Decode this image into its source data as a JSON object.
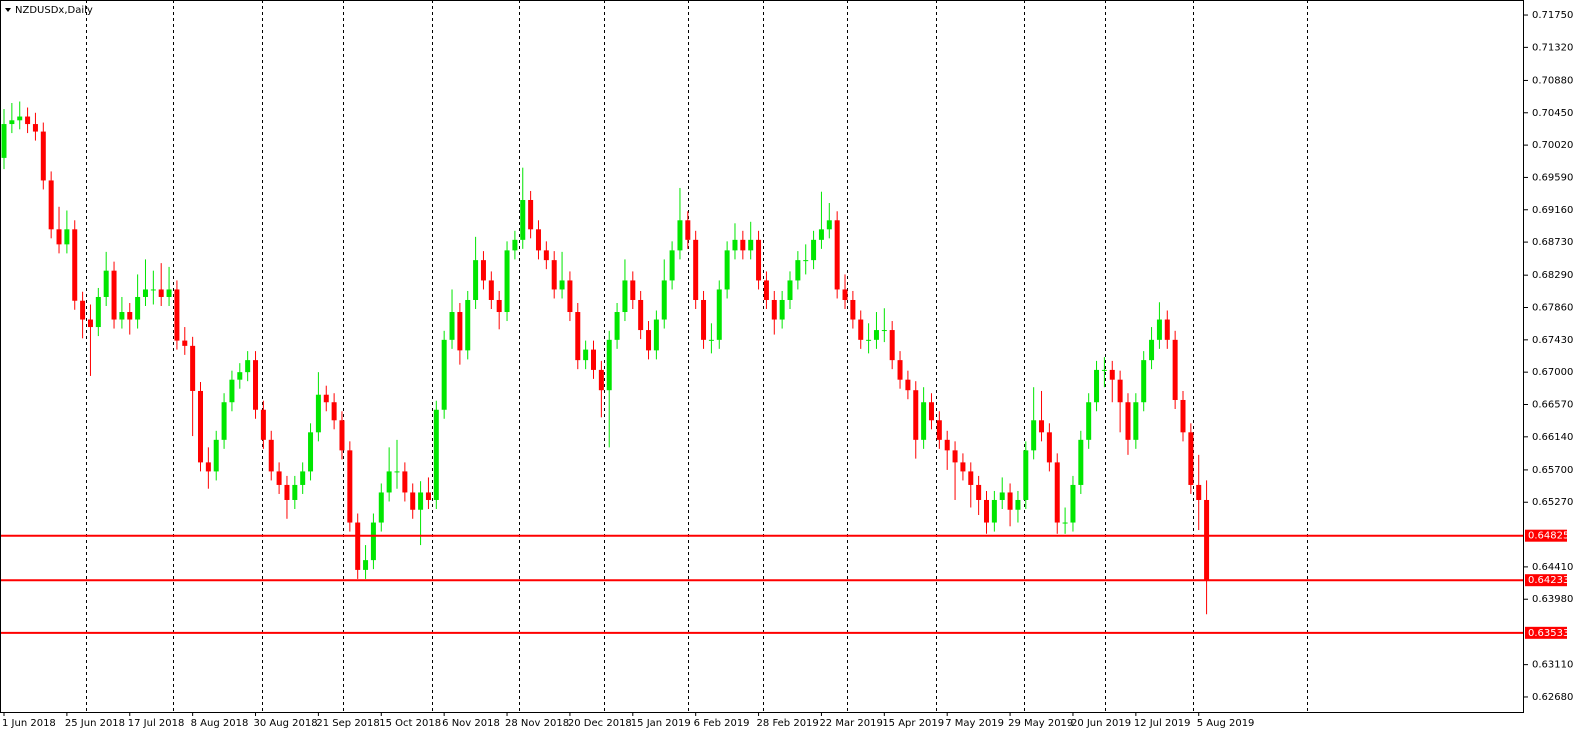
{
  "chart_data": {
    "type": "candlestick",
    "title": "NZDUSDx,Daily",
    "up_color": "#00e600",
    "down_color": "#ff0000",
    "level_color": "#ff0000",
    "ylim": [
      0.6248,
      0.7195
    ],
    "yticks": [
      {
        "value": 0.7175,
        "label": "0.71750"
      },
      {
        "value": 0.7132,
        "label": "0.71320"
      },
      {
        "value": 0.7088,
        "label": "0.70880"
      },
      {
        "value": 0.7045,
        "label": "0.70450"
      },
      {
        "value": 0.7002,
        "label": "0.70020"
      },
      {
        "value": 0.6959,
        "label": "0.69590"
      },
      {
        "value": 0.6916,
        "label": "0.69160"
      },
      {
        "value": 0.6873,
        "label": "0.68730"
      },
      {
        "value": 0.6829,
        "label": "0.68290"
      },
      {
        "value": 0.6786,
        "label": "0.67860"
      },
      {
        "value": 0.6743,
        "label": "0.67430"
      },
      {
        "value": 0.67,
        "label": "0.67000"
      },
      {
        "value": 0.6657,
        "label": "0.66570"
      },
      {
        "value": 0.6614,
        "label": "0.66140"
      },
      {
        "value": 0.657,
        "label": "0.65700"
      },
      {
        "value": 0.6527,
        "label": "0.65270"
      },
      {
        "value": 0.6441,
        "label": "0.64410"
      },
      {
        "value": 0.6398,
        "label": "0.63980"
      },
      {
        "value": 0.6311,
        "label": "0.63110"
      },
      {
        "value": 0.6268,
        "label": "0.62680"
      }
    ],
    "levels": [
      0.64825,
      0.64233,
      0.63533
    ],
    "x_labels": [
      "1 Jun 2018",
      "25 Jun 2018",
      "17 Jul 2018",
      "8 Aug 2018",
      "30 Aug 2018",
      "21 Sep 2018",
      "15 Oct 2018",
      "6 Nov 2018",
      "28 Nov 2018",
      "20 Dec 2018",
      "15 Jan 2019",
      "6 Feb 2019",
      "28 Feb 2019",
      "22 Mar 2019",
      "15 Apr 2019",
      "7 May 2019",
      "29 May 2019",
      "20 Jun 2019",
      "12 Jul 2019",
      "5 Aug 2019"
    ],
    "ohlc": [
      [
        0.6985,
        0.705,
        0.697,
        0.703
      ],
      [
        0.703,
        0.7058,
        0.7018,
        0.7035
      ],
      [
        0.7035,
        0.706,
        0.7023,
        0.704
      ],
      [
        0.704,
        0.7052,
        0.7018,
        0.703
      ],
      [
        0.703,
        0.7045,
        0.7008,
        0.702
      ],
      [
        0.702,
        0.7032,
        0.6943,
        0.6955
      ],
      [
        0.6955,
        0.6967,
        0.6878,
        0.689
      ],
      [
        0.689,
        0.692,
        0.6858,
        0.687
      ],
      [
        0.687,
        0.6915,
        0.6858,
        0.689
      ],
      [
        0.689,
        0.6902,
        0.6783,
        0.6795
      ],
      [
        0.6795,
        0.6807,
        0.6745,
        0.677
      ],
      [
        0.677,
        0.679,
        0.6695,
        0.676
      ],
      [
        0.676,
        0.6812,
        0.6748,
        0.68
      ],
      [
        0.68,
        0.686,
        0.6788,
        0.6835
      ],
      [
        0.6835,
        0.6847,
        0.6758,
        0.677
      ],
      [
        0.677,
        0.68,
        0.6758,
        0.678
      ],
      [
        0.678,
        0.6792,
        0.675,
        0.677
      ],
      [
        0.677,
        0.683,
        0.6758,
        0.68
      ],
      [
        0.68,
        0.685,
        0.6788,
        0.681
      ],
      [
        0.681,
        0.6835,
        0.679,
        0.681
      ],
      [
        0.681,
        0.6845,
        0.6788,
        0.68
      ],
      [
        0.68,
        0.684,
        0.6788,
        0.681
      ],
      [
        0.681,
        0.6822,
        0.673,
        0.6742
      ],
      [
        0.6742,
        0.676,
        0.6723,
        0.6735
      ],
      [
        0.6735,
        0.6747,
        0.6615,
        0.6675
      ],
      [
        0.6675,
        0.6687,
        0.6568,
        0.658
      ],
      [
        0.658,
        0.66,
        0.6545,
        0.6568
      ],
      [
        0.6568,
        0.6622,
        0.6556,
        0.661
      ],
      [
        0.661,
        0.6672,
        0.6598,
        0.666
      ],
      [
        0.666,
        0.6702,
        0.6648,
        0.669
      ],
      [
        0.669,
        0.6712,
        0.6678,
        0.67
      ],
      [
        0.67,
        0.6728,
        0.6688,
        0.6716
      ],
      [
        0.6716,
        0.6728,
        0.6638,
        0.665
      ],
      [
        0.665,
        0.6662,
        0.6598,
        0.661
      ],
      [
        0.661,
        0.6622,
        0.6556,
        0.6568
      ],
      [
        0.6568,
        0.658,
        0.6538,
        0.655
      ],
      [
        0.655,
        0.6562,
        0.6505,
        0.653
      ],
      [
        0.653,
        0.6562,
        0.6518,
        0.655
      ],
      [
        0.655,
        0.658,
        0.6538,
        0.6568
      ],
      [
        0.6568,
        0.6632,
        0.6556,
        0.662
      ],
      [
        0.662,
        0.67,
        0.6608,
        0.667
      ],
      [
        0.667,
        0.6682,
        0.6648,
        0.666
      ],
      [
        0.666,
        0.6672,
        0.6624,
        0.6636
      ],
      [
        0.6636,
        0.6648,
        0.6584,
        0.6596
      ],
      [
        0.6596,
        0.6608,
        0.6488,
        0.65
      ],
      [
        0.65,
        0.6512,
        0.6425,
        0.6437
      ],
      [
        0.6437,
        0.647,
        0.6425,
        0.645
      ],
      [
        0.645,
        0.6512,
        0.6438,
        0.65
      ],
      [
        0.65,
        0.6552,
        0.6488,
        0.654
      ],
      [
        0.654,
        0.66,
        0.6528,
        0.6568
      ],
      [
        0.6568,
        0.661,
        0.6545,
        0.6568
      ],
      [
        0.6568,
        0.658,
        0.6528,
        0.654
      ],
      [
        0.654,
        0.6552,
        0.6505,
        0.6517
      ],
      [
        0.6517,
        0.6555,
        0.647,
        0.654
      ],
      [
        0.654,
        0.656,
        0.6518,
        0.653
      ],
      [
        0.653,
        0.6662,
        0.6518,
        0.665
      ],
      [
        0.665,
        0.6755,
        0.6638,
        0.6743
      ],
      [
        0.6743,
        0.681,
        0.6731,
        0.678
      ],
      [
        0.678,
        0.6792,
        0.671,
        0.6729
      ],
      [
        0.6729,
        0.6808,
        0.6717,
        0.6796
      ],
      [
        0.6796,
        0.688,
        0.6784,
        0.6849
      ],
      [
        0.6849,
        0.6861,
        0.681,
        0.6822
      ],
      [
        0.6822,
        0.6834,
        0.6784,
        0.6796
      ],
      [
        0.6796,
        0.6808,
        0.6757,
        0.678
      ],
      [
        0.678,
        0.6874,
        0.6768,
        0.6862
      ],
      [
        0.6862,
        0.6888,
        0.685,
        0.6876
      ],
      [
        0.6876,
        0.6972,
        0.6864,
        0.6929
      ],
      [
        0.6929,
        0.6941,
        0.6878,
        0.689
      ],
      [
        0.689,
        0.6902,
        0.685,
        0.6862
      ],
      [
        0.6862,
        0.6874,
        0.6837,
        0.6849
      ],
      [
        0.6849,
        0.6861,
        0.6798,
        0.681
      ],
      [
        0.681,
        0.686,
        0.6798,
        0.6822
      ],
      [
        0.6822,
        0.6834,
        0.6768,
        0.678
      ],
      [
        0.678,
        0.6792,
        0.6704,
        0.6716
      ],
      [
        0.6716,
        0.6742,
        0.6704,
        0.673
      ],
      [
        0.673,
        0.6742,
        0.6691,
        0.6703
      ],
      [
        0.6703,
        0.6715,
        0.664,
        0.6676
      ],
      [
        0.6676,
        0.6755,
        0.66,
        0.6743
      ],
      [
        0.6743,
        0.6792,
        0.6731,
        0.678
      ],
      [
        0.678,
        0.685,
        0.6768,
        0.6822
      ],
      [
        0.6822,
        0.6834,
        0.6784,
        0.6796
      ],
      [
        0.6796,
        0.6808,
        0.6744,
        0.6756
      ],
      [
        0.6756,
        0.6768,
        0.6717,
        0.6729
      ],
      [
        0.6729,
        0.6782,
        0.6717,
        0.677
      ],
      [
        0.677,
        0.685,
        0.6758,
        0.6822
      ],
      [
        0.6822,
        0.6874,
        0.681,
        0.6862
      ],
      [
        0.6862,
        0.6945,
        0.685,
        0.6902
      ],
      [
        0.6902,
        0.6914,
        0.6864,
        0.6876
      ],
      [
        0.6876,
        0.6888,
        0.6784,
        0.6796
      ],
      [
        0.6796,
        0.6808,
        0.6731,
        0.6743
      ],
      [
        0.6743,
        0.6765,
        0.6725,
        0.6743
      ],
      [
        0.6743,
        0.6822,
        0.6731,
        0.681
      ],
      [
        0.681,
        0.6874,
        0.6798,
        0.6862
      ],
      [
        0.6862,
        0.6898,
        0.685,
        0.6876
      ],
      [
        0.6876,
        0.6888,
        0.685,
        0.6862
      ],
      [
        0.6862,
        0.69,
        0.685,
        0.6876
      ],
      [
        0.6876,
        0.6888,
        0.681,
        0.6822
      ],
      [
        0.6822,
        0.6834,
        0.6784,
        0.6796
      ],
      [
        0.6796,
        0.6808,
        0.675,
        0.677
      ],
      [
        0.677,
        0.6808,
        0.6758,
        0.6796
      ],
      [
        0.6796,
        0.6834,
        0.6784,
        0.6822
      ],
      [
        0.6822,
        0.6861,
        0.681,
        0.6849
      ],
      [
        0.6849,
        0.687,
        0.683,
        0.6849
      ],
      [
        0.6849,
        0.6888,
        0.6837,
        0.6876
      ],
      [
        0.6876,
        0.694,
        0.6864,
        0.689
      ],
      [
        0.689,
        0.6925,
        0.6878,
        0.6902
      ],
      [
        0.6902,
        0.6914,
        0.6798,
        0.681
      ],
      [
        0.681,
        0.683,
        0.6784,
        0.6796
      ],
      [
        0.6796,
        0.6808,
        0.6758,
        0.677
      ],
      [
        0.677,
        0.6782,
        0.6731,
        0.6743
      ],
      [
        0.6743,
        0.6765,
        0.6725,
        0.6743
      ],
      [
        0.6743,
        0.678,
        0.6731,
        0.6756
      ],
      [
        0.6756,
        0.6785,
        0.674,
        0.6756
      ],
      [
        0.6756,
        0.6768,
        0.6704,
        0.6716
      ],
      [
        0.6716,
        0.6728,
        0.6678,
        0.669
      ],
      [
        0.669,
        0.6702,
        0.6664,
        0.6676
      ],
      [
        0.6676,
        0.6688,
        0.6585,
        0.661
      ],
      [
        0.661,
        0.668,
        0.6598,
        0.666
      ],
      [
        0.666,
        0.6672,
        0.6624,
        0.6636
      ],
      [
        0.6636,
        0.6648,
        0.6598,
        0.661
      ],
      [
        0.661,
        0.6622,
        0.657,
        0.6596
      ],
      [
        0.6596,
        0.6608,
        0.653,
        0.658
      ],
      [
        0.658,
        0.6592,
        0.6556,
        0.6568
      ],
      [
        0.6568,
        0.658,
        0.652,
        0.655
      ],
      [
        0.655,
        0.6562,
        0.651,
        0.653
      ],
      [
        0.653,
        0.6542,
        0.6485,
        0.65
      ],
      [
        0.65,
        0.6542,
        0.6488,
        0.653
      ],
      [
        0.653,
        0.656,
        0.6518,
        0.654
      ],
      [
        0.654,
        0.6552,
        0.6495,
        0.6517
      ],
      [
        0.6517,
        0.6542,
        0.65,
        0.653
      ],
      [
        0.653,
        0.6608,
        0.6518,
        0.6596
      ],
      [
        0.6596,
        0.668,
        0.6584,
        0.6636
      ],
      [
        0.6636,
        0.6675,
        0.6608,
        0.662
      ],
      [
        0.662,
        0.6632,
        0.6568,
        0.658
      ],
      [
        0.658,
        0.6592,
        0.6485,
        0.65
      ],
      [
        0.65,
        0.652,
        0.6485,
        0.65
      ],
      [
        0.65,
        0.6562,
        0.6488,
        0.655
      ],
      [
        0.655,
        0.6622,
        0.6538,
        0.661
      ],
      [
        0.661,
        0.6672,
        0.6598,
        0.666
      ],
      [
        0.666,
        0.6715,
        0.6648,
        0.6703
      ],
      [
        0.6703,
        0.672,
        0.668,
        0.6703
      ],
      [
        0.6703,
        0.6715,
        0.666,
        0.669
      ],
      [
        0.669,
        0.6702,
        0.662,
        0.666
      ],
      [
        0.666,
        0.6672,
        0.659,
        0.661
      ],
      [
        0.661,
        0.6672,
        0.6598,
        0.666
      ],
      [
        0.666,
        0.6728,
        0.6648,
        0.6716
      ],
      [
        0.6716,
        0.676,
        0.6704,
        0.6743
      ],
      [
        0.6743,
        0.6793,
        0.6731,
        0.677
      ],
      [
        0.677,
        0.6782,
        0.6731,
        0.6743
      ],
      [
        0.6743,
        0.6755,
        0.6651,
        0.6663
      ],
      [
        0.6663,
        0.6675,
        0.6608,
        0.662
      ],
      [
        0.662,
        0.6632,
        0.6538,
        0.655
      ],
      [
        0.655,
        0.659,
        0.649,
        0.653
      ],
      [
        0.653,
        0.6556,
        0.6378,
        0.6424
      ]
    ]
  }
}
